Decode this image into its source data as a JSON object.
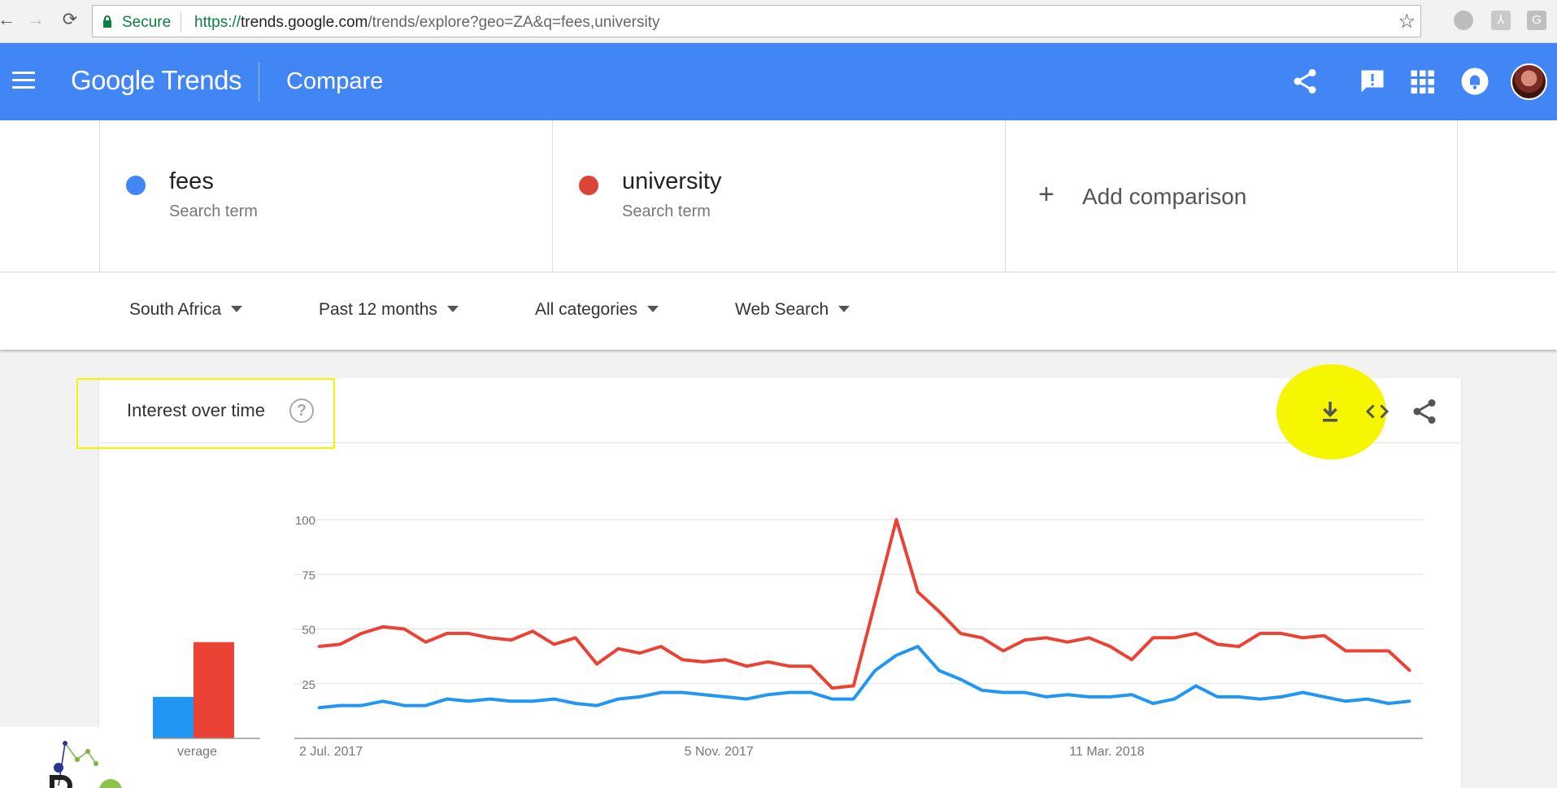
{
  "browser": {
    "secure_label": "Secure",
    "url_scheme": "https://",
    "url_host": "trends.google.com",
    "url_path": "/trends/explore?geo=ZA&q=fees,university"
  },
  "header": {
    "logo_text": "Google Trends",
    "page_title": "Compare",
    "brand_color": "#4285f4"
  },
  "terms": [
    {
      "name": "fees",
      "subtitle": "Search term",
      "color": "#4285f4"
    },
    {
      "name": "university",
      "subtitle": "Search term",
      "color": "#db4437"
    }
  ],
  "add_comparison_label": "Add comparison",
  "filters": {
    "region": "South Africa",
    "period": "Past 12 months",
    "category": "All categories",
    "search_type": "Web Search"
  },
  "panel": {
    "title": "Interest over time",
    "average_label": "verage"
  },
  "icons": [
    "menu-icon",
    "share-icon",
    "feedback-icon",
    "apps-icon",
    "notifications-icon",
    "download-icon",
    "embed-icon",
    "help-icon",
    "lock-icon",
    "star-icon"
  ],
  "chart_data": {
    "type": "line",
    "title": "Interest over time",
    "y_ticks": [
      100,
      75,
      50,
      25
    ],
    "ylim": [
      0,
      100
    ],
    "x_tick_labels": [
      "2 Jul. 2017",
      "5 Nov. 2017",
      "11 Mar. 2018"
    ],
    "x_tick_index": [
      0,
      18,
      36
    ],
    "grid": true,
    "series": [
      {
        "name": "university",
        "color": "#ea4335",
        "values": [
          42,
          43,
          48,
          51,
          50,
          44,
          48,
          48,
          46,
          45,
          49,
          43,
          46,
          34,
          41,
          39,
          42,
          36,
          35,
          36,
          33,
          35,
          33,
          33,
          23,
          24,
          62,
          100,
          67,
          58,
          48,
          46,
          40,
          45,
          46,
          44,
          46,
          42,
          36,
          46,
          46,
          48,
          43,
          42,
          48,
          48,
          46,
          47,
          40,
          40,
          40,
          31
        ]
      },
      {
        "name": "fees",
        "color": "#2196f3",
        "values": [
          14,
          15,
          15,
          17,
          15,
          15,
          18,
          17,
          18,
          17,
          17,
          18,
          16,
          15,
          18,
          19,
          21,
          21,
          20,
          19,
          18,
          20,
          21,
          21,
          18,
          18,
          31,
          38,
          42,
          31,
          27,
          22,
          21,
          21,
          19,
          20,
          19,
          19,
          20,
          16,
          18,
          24,
          19,
          19,
          18,
          19,
          21,
          19,
          17,
          18,
          16,
          17
        ]
      }
    ],
    "average_bars": [
      {
        "name": "fees",
        "value": 19,
        "color": "#2196f3"
      },
      {
        "name": "university",
        "value": 44,
        "color": "#ea4335"
      }
    ]
  }
}
